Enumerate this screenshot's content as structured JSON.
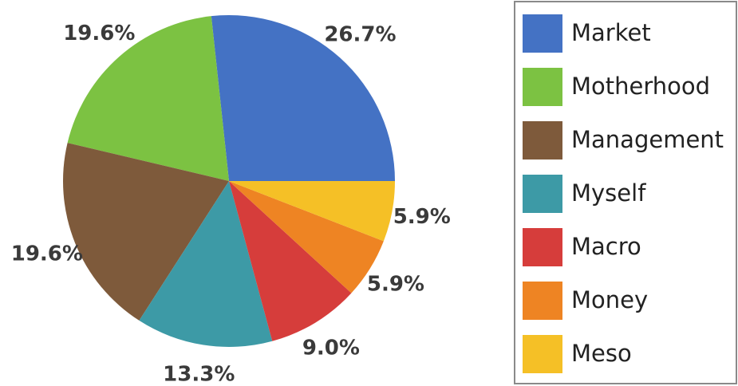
{
  "chart_data": {
    "type": "pie",
    "categories": [
      "Market",
      "Motherhood",
      "Management",
      "Myself",
      "Macro",
      "Money",
      "Meso"
    ],
    "values": [
      26.7,
      19.6,
      19.6,
      13.3,
      9.0,
      5.9,
      5.9
    ],
    "value_labels": [
      "26.7%",
      "19.6%",
      "19.6%",
      "13.3%",
      "9.0%",
      "5.9%",
      "5.9%"
    ],
    "colors": [
      "#4472c4",
      "#7cc242",
      "#7e5a3b",
      "#3d9aa6",
      "#d63d3b",
      "#ee8423",
      "#f5c026"
    ],
    "legend": "right"
  }
}
